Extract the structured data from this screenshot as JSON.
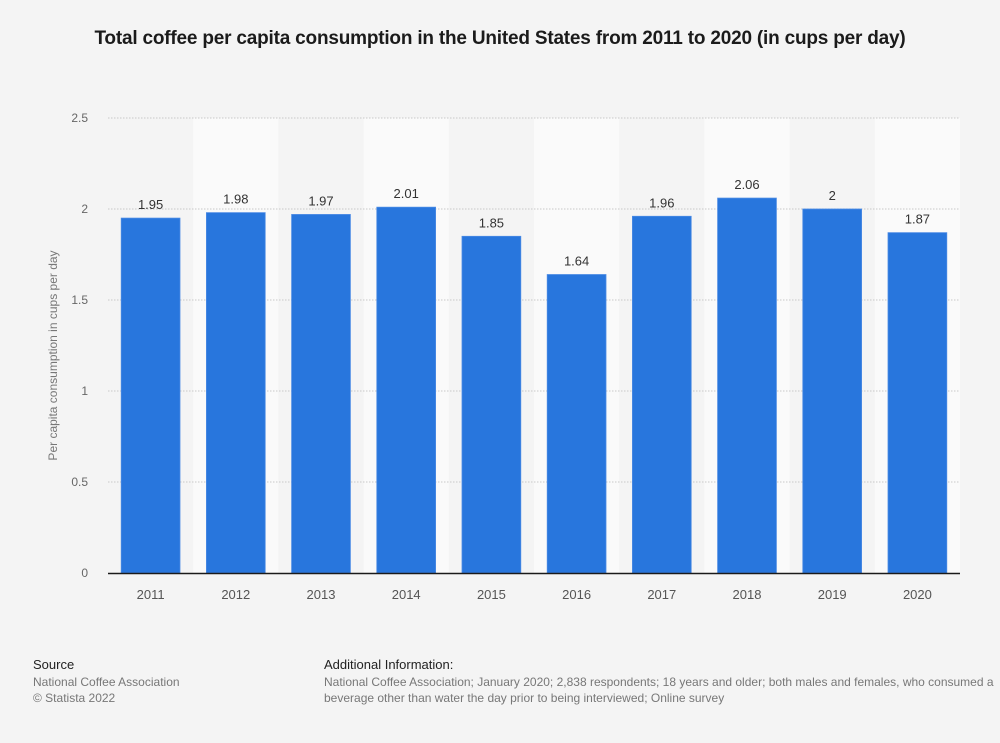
{
  "chart_data": {
    "type": "bar",
    "title": "Total coffee per capita consumption in the United States from 2011 to 2020 (in cups per day)",
    "xlabel": "",
    "ylabel": "Per capita consumption in cups per day",
    "categories": [
      "2011",
      "2012",
      "2013",
      "2014",
      "2015",
      "2016",
      "2017",
      "2018",
      "2019",
      "2020"
    ],
    "values": [
      1.95,
      1.98,
      1.97,
      2.01,
      1.85,
      1.64,
      1.96,
      2.06,
      2,
      1.87
    ],
    "value_labels": [
      "1.95",
      "1.98",
      "1.97",
      "2.01",
      "1.85",
      "1.64",
      "1.96",
      "2.06",
      "2",
      "1.87"
    ],
    "ylim": [
      0,
      2.5
    ],
    "yticks": [
      0,
      0.5,
      1,
      1.5,
      2,
      2.5
    ],
    "ytick_labels": [
      "0",
      "0.5",
      "1",
      "1.5",
      "2",
      "2.5"
    ],
    "grid": true,
    "legend": "none",
    "bar_color": "#2876dd"
  },
  "footer": {
    "source_heading": "Source",
    "source_lines": [
      "National Coffee Association",
      "© Statista 2022"
    ],
    "additional_heading": "Additional Information:",
    "additional_text": "National Coffee Association; January 2020; 2,838 respondents; 18 years and older; both males and females, who consumed a beverage other than water the day prior to being interviewed; Online survey"
  }
}
